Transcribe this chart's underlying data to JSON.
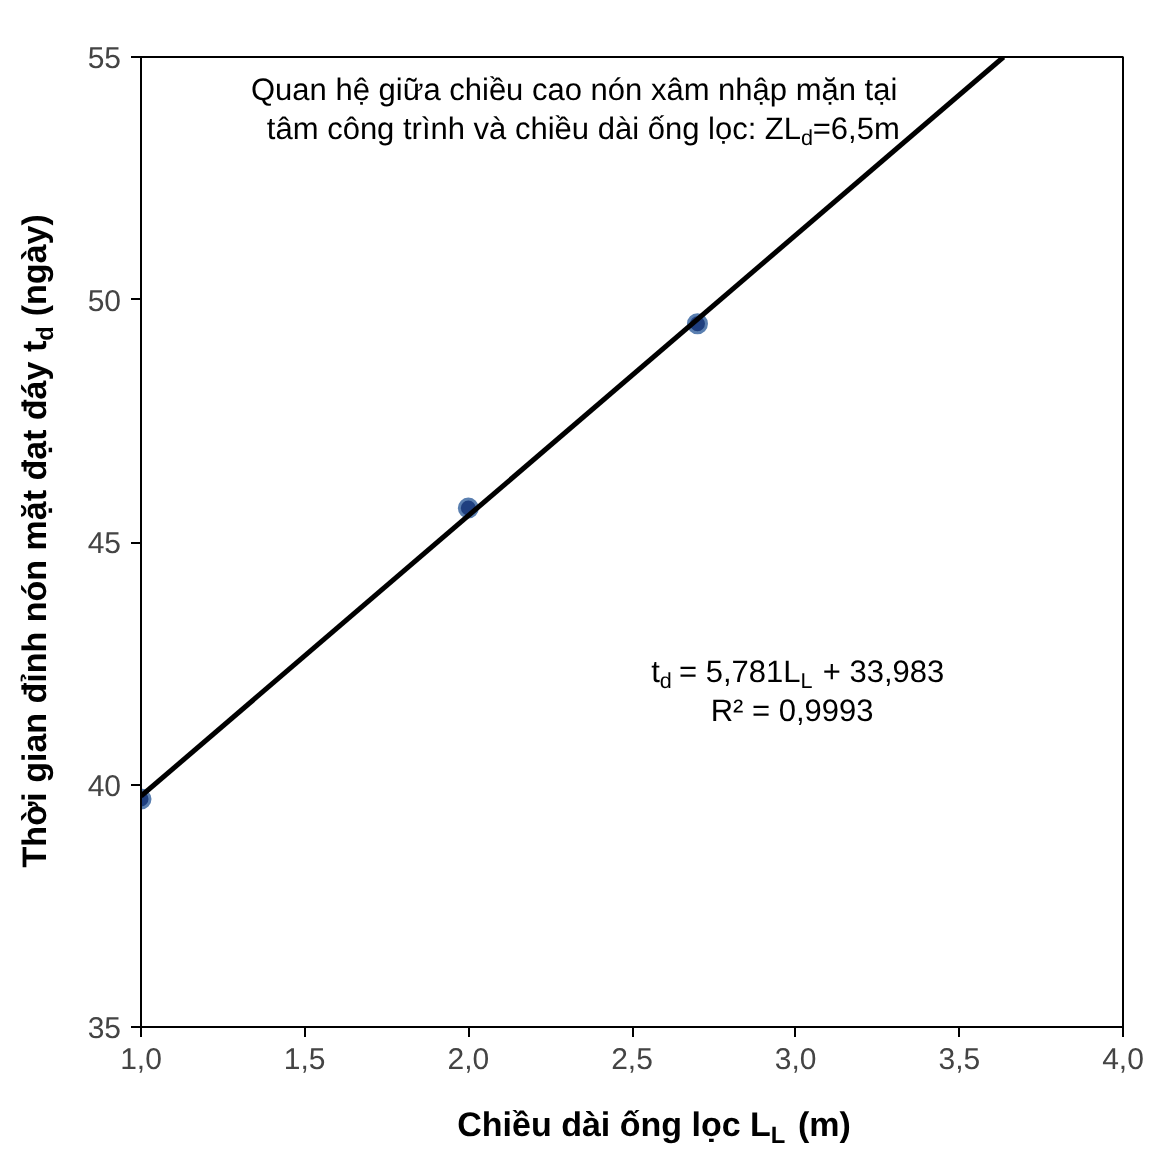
{
  "chart_data": {
    "type": "scatter",
    "xlabel": "Chiều dài ống lọc L$_{L}$ (m)",
    "ylabel": "Thời gian đỉnh nón mặt đạt đáy t$_{d}$ (ngày)",
    "annotations": [
      "Quan hệ giữa chiều cao nón xâm nhập mặn tại\ntâm công trình và chiều dài ống lọc: ZL$_{d}$=6,5m",
      "t$_{d}$ = 5,781L$_{L}$ + 33,983\nR² = 0,9993"
    ],
    "x": [
      1.0,
      2.0,
      2.7
    ],
    "series": [
      {
        "color": "#1f3f7f",
        "values": [
          39.7,
          45.7,
          49.5
        ],
        "marker": "circle"
      },
      {
        "type": "line",
        "color": "#000000",
        "x": [
          1.0,
          3.635
        ],
        "values": [
          39.76,
          55.0
        ],
        "line_style": "solid"
      }
    ],
    "xlim": [
      1.0,
      4.0
    ],
    "ylim": [
      35,
      55
    ],
    "xticks": [
      {
        "value": 1.0,
        "label": "1,0"
      },
      {
        "value": 1.5,
        "label": "1,5"
      },
      {
        "value": 2.0,
        "label": "2,0"
      },
      {
        "value": 2.5,
        "label": "2,5"
      },
      {
        "value": 3.0,
        "label": "3,0"
      },
      {
        "value": 3.5,
        "label": "3,5"
      },
      {
        "value": 4.0,
        "label": "4,0"
      }
    ],
    "yticks": [
      35,
      40,
      45,
      50,
      55
    ],
    "grid": false
  }
}
